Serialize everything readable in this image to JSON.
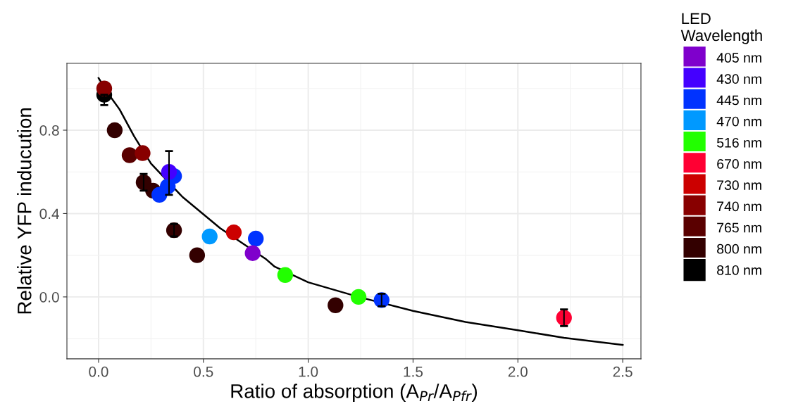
{
  "chart_data": {
    "type": "scatter",
    "xlabel": "Ratio of absorption (A$_{Pr}$/A$_{Pfr}$)",
    "ylabel": "Relative YFP inducution",
    "legend_title": "LED\nWavelength",
    "xlim": [
      -0.151,
      2.587
    ],
    "ylim": [
      -0.297,
      1.121
    ],
    "xticks": [
      {
        "value": 0,
        "label": "0.0"
      },
      0.5,
      {
        "value": 1,
        "label": "1.0"
      },
      1.5,
      {
        "value": 2,
        "label": "2.0"
      },
      2.5
    ],
    "yticks": [
      {
        "value": 0,
        "label": "0.0"
      },
      0.4,
      0.8
    ],
    "grid": true,
    "legend": "right",
    "marker": "circle",
    "series": [
      {
        "name": "405 nm",
        "color": "#7f00cc",
        "x": [
          0.735
        ],
        "values": [
          0.21
        ]
      },
      {
        "name": "430 nm",
        "color": "#4400ff",
        "x": [
          0.336
        ],
        "values": [
          0.6
        ],
        "errors": [
          [
            0.49,
            0.7
          ]
        ]
      },
      {
        "name": "445 nm",
        "color": "#0033ff",
        "x": [
          0.29,
          0.33,
          0.36,
          0.75,
          1.35
        ],
        "values": [
          0.49,
          0.53,
          0.58,
          0.28,
          -0.015
        ],
        "errors": [
          null,
          null,
          null,
          null,
          0.03
        ]
      },
      {
        "name": "470 nm",
        "color": "#0099ff",
        "x": [
          0.53
        ],
        "values": [
          0.29
        ]
      },
      {
        "name": "516 nm",
        "color": "#22ff00",
        "x": [
          0.89,
          1.24
        ],
        "values": [
          0.105,
          0.0
        ]
      },
      {
        "name": "670 nm",
        "color": "#ff0033",
        "x": [
          2.22
        ],
        "values": [
          -0.1
        ],
        "errors": [
          0.04
        ]
      },
      {
        "name": "730 nm",
        "color": "#cc0000",
        "x": [
          0.645
        ],
        "values": [
          0.31
        ]
      },
      {
        "name": "740 nm",
        "color": "#880000",
        "x": [
          0.21,
          0.027
        ],
        "values": [
          0.69,
          1.0
        ]
      },
      {
        "name": "765 nm",
        "color": "#5a0000",
        "x": [
          0.148
        ],
        "values": [
          0.68
        ]
      },
      {
        "name": "800 nm",
        "color": "#330000",
        "x": [
          0.077,
          0.215,
          0.26,
          0.36,
          0.47,
          1.13
        ],
        "values": [
          0.8,
          0.55,
          0.51,
          0.32,
          0.2,
          -0.04
        ],
        "errors": [
          null,
          0.04,
          null,
          0.03,
          null,
          null
        ]
      },
      {
        "name": "810 nm",
        "color": "#000000",
        "x": [
          0.027
        ],
        "values": [
          0.97
        ],
        "errors": [
          [
            0.92,
            0.97
          ]
        ]
      },
      {
        "type": "line",
        "color": "#000000",
        "marker": "none",
        "x": [
          0,
          0.05,
          0.1,
          0.17,
          0.25,
          0.4,
          0.58,
          0.8,
          0.84,
          1.0,
          1.24,
          1.5,
          1.75,
          2.0,
          2.22,
          2.5
        ],
        "values": [
          1.05,
          0.97,
          0.9,
          0.77,
          0.64,
          0.48,
          0.33,
          0.18,
          0.145,
          0.07,
          0.0,
          -0.067,
          -0.12,
          -0.16,
          -0.196,
          -0.23
        ]
      }
    ]
  }
}
